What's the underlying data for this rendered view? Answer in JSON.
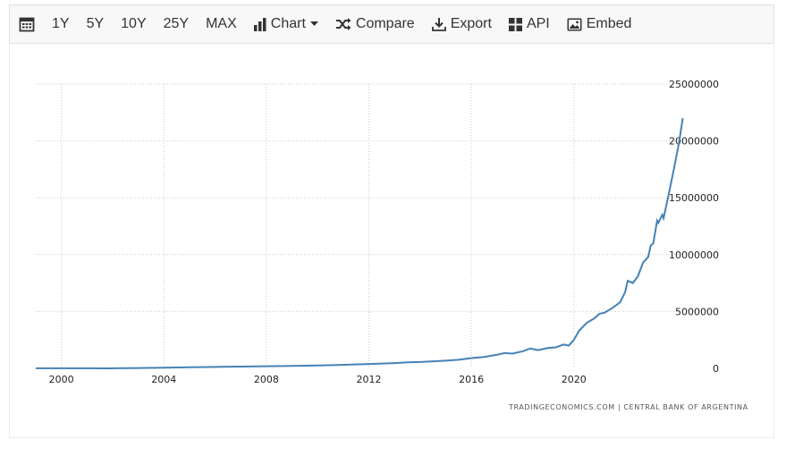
{
  "toolbar": {
    "items": [
      {
        "label": "",
        "icon": "calendar-icon"
      },
      {
        "label": "1Y"
      },
      {
        "label": "5Y"
      },
      {
        "label": "10Y"
      },
      {
        "label": "25Y"
      },
      {
        "label": "MAX"
      },
      {
        "label": "Chart",
        "icon": "bar-chart-icon",
        "dropdown": true
      },
      {
        "label": "Compare",
        "icon": "shuffle-icon"
      },
      {
        "label": "Export",
        "icon": "download-icon"
      },
      {
        "label": "API",
        "icon": "grid-icon"
      },
      {
        "label": "Embed",
        "icon": "image-icon"
      }
    ]
  },
  "credit": "TRADINGECONOMICS.COM  |  CENTRAL BANK OF ARGENTINA",
  "colors": {
    "line": "#4682b4",
    "grid": "#cccccc",
    "toolbar_bg": "#f8f8f8"
  },
  "chart_data": {
    "type": "line",
    "title": "",
    "xlabel": "",
    "ylabel": "",
    "xlim": [
      1999.0,
      2024.3
    ],
    "ylim": [
      0,
      25000000
    ],
    "x_ticks": [
      2000,
      2004,
      2008,
      2012,
      2016,
      2020
    ],
    "y_ticks": [
      0,
      5000000,
      10000000,
      15000000,
      20000000,
      25000000
    ],
    "y_tick_labels": [
      "0",
      "5000000",
      "10000000",
      "15000000",
      "20000000",
      "25000000"
    ],
    "grid": true,
    "y_axis_side": "right",
    "series": [
      {
        "name": "",
        "x": [
          1999.0,
          2000.0,
          2001.0,
          2001.8,
          2002.5,
          2003.0,
          2004.0,
          2005.0,
          2006.0,
          2007.0,
          2008.0,
          2009.0,
          2010.0,
          2011.0,
          2012.0,
          2013.0,
          2013.5,
          2014.0,
          2014.5,
          2015.0,
          2015.5,
          2016.0,
          2016.5,
          2017.0,
          2017.3,
          2017.6,
          2018.0,
          2018.3,
          2018.6,
          2019.0,
          2019.3,
          2019.6,
          2019.8,
          2020.0,
          2020.2,
          2020.5,
          2020.8,
          2021.0,
          2021.2,
          2021.5,
          2021.8,
          2022.0,
          2022.1,
          2022.3,
          2022.5,
          2022.7,
          2022.9,
          2023.0,
          2023.1,
          2023.25,
          2023.3,
          2023.45,
          2023.5,
          2023.7,
          2023.9,
          2024.1,
          2024.25
        ],
        "values": [
          12000,
          13000,
          11000,
          0,
          15000,
          30000,
          60000,
          100000,
          130000,
          160000,
          190000,
          220000,
          260000,
          310000,
          380000,
          460000,
          530000,
          560000,
          620000,
          680000,
          760000,
          900000,
          1000000,
          1200000,
          1350000,
          1300000,
          1500000,
          1750000,
          1600000,
          1800000,
          1850000,
          2100000,
          2000000,
          2500000,
          3300000,
          4000000,
          4400000,
          4800000,
          4900000,
          5300000,
          5800000,
          6700000,
          7700000,
          7500000,
          8100000,
          9300000,
          9800000,
          10800000,
          11000000,
          13000000,
          12800000,
          13500000,
          13200000,
          15300000,
          17500000,
          19800000,
          22000000
        ]
      }
    ]
  }
}
